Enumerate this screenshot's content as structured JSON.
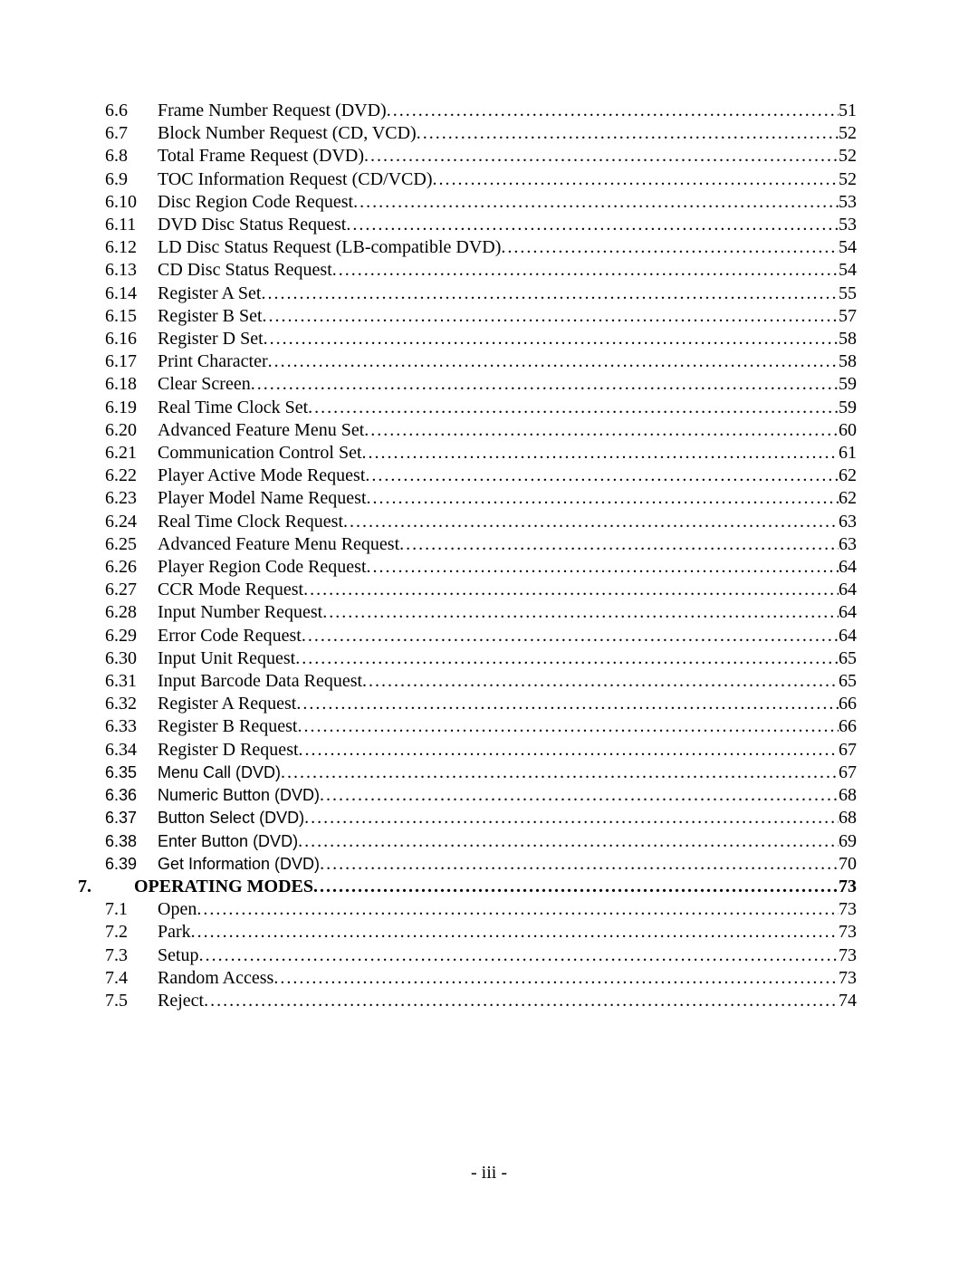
{
  "page_number_label": "- iii -",
  "toc": [
    {
      "chapter": "",
      "num": "6.6",
      "title": "Frame Number Request (DVD)",
      "page": "51",
      "header": false,
      "alt": false
    },
    {
      "chapter": "",
      "num": "6.7",
      "title": "Block Number Request (CD, VCD)",
      "page": "52",
      "header": false,
      "alt": false
    },
    {
      "chapter": "",
      "num": "6.8",
      "title": "Total Frame Request (DVD)",
      "page": "52",
      "header": false,
      "alt": false
    },
    {
      "chapter": "",
      "num": "6.9",
      "title": "TOC Information Request (CD/VCD)",
      "page": "52",
      "header": false,
      "alt": false
    },
    {
      "chapter": "",
      "num": "6.10",
      "title": "Disc Region Code Request",
      "page": "53",
      "header": false,
      "alt": false
    },
    {
      "chapter": "",
      "num": "6.11",
      "title": "DVD Disc Status Request",
      "page": "53",
      "header": false,
      "alt": false
    },
    {
      "chapter": "",
      "num": "6.12",
      "title": "LD Disc Status Request (LB-compatible DVD)",
      "page": "54",
      "header": false,
      "alt": false
    },
    {
      "chapter": "",
      "num": "6.13",
      "title": "CD Disc Status Request",
      "page": "54",
      "header": false,
      "alt": false
    },
    {
      "chapter": "",
      "num": "6.14",
      "title": "Register A Set",
      "page": "55",
      "header": false,
      "alt": false
    },
    {
      "chapter": "",
      "num": "6.15",
      "title": "Register B Set",
      "page": "57",
      "header": false,
      "alt": false
    },
    {
      "chapter": "",
      "num": "6.16",
      "title": "Register D Set",
      "page": "58",
      "header": false,
      "alt": false
    },
    {
      "chapter": "",
      "num": "6.17",
      "title": "Print Character",
      "page": "58",
      "header": false,
      "alt": false
    },
    {
      "chapter": "",
      "num": "6.18",
      "title": "Clear Screen",
      "page": "59",
      "header": false,
      "alt": false
    },
    {
      "chapter": "",
      "num": "6.19",
      "title": "Real Time Clock Set",
      "page": "59",
      "header": false,
      "alt": false
    },
    {
      "chapter": "",
      "num": "6.20",
      "title": "Advanced Feature Menu Set",
      "page": "60",
      "header": false,
      "alt": false
    },
    {
      "chapter": "",
      "num": "6.21",
      "title": "Communication Control Set",
      "page": "61",
      "header": false,
      "alt": false
    },
    {
      "chapter": "",
      "num": "6.22",
      "title": "Player Active Mode Request",
      "page": "62",
      "header": false,
      "alt": false
    },
    {
      "chapter": "",
      "num": "6.23",
      "title": "Player Model Name Request",
      "page": "62",
      "header": false,
      "alt": false
    },
    {
      "chapter": "",
      "num": "6.24",
      "title": "Real Time Clock Request",
      "page": "63",
      "header": false,
      "alt": false
    },
    {
      "chapter": "",
      "num": "6.25",
      "title": "Advanced Feature Menu Request",
      "page": "63",
      "header": false,
      "alt": false
    },
    {
      "chapter": "",
      "num": "6.26",
      "title": "Player Region Code Request",
      "page": "64",
      "header": false,
      "alt": false
    },
    {
      "chapter": "",
      "num": "6.27",
      "title": "CCR Mode Request",
      "page": "64",
      "header": false,
      "alt": false
    },
    {
      "chapter": "",
      "num": "6.28",
      "title": "Input Number Request",
      "page": "64",
      "header": false,
      "alt": false
    },
    {
      "chapter": "",
      "num": "6.29",
      "title": "Error Code Request",
      "page": "64",
      "header": false,
      "alt": false
    },
    {
      "chapter": "",
      "num": "6.30",
      "title": "Input Unit Request",
      "page": "65",
      "header": false,
      "alt": false
    },
    {
      "chapter": "",
      "num": "6.31",
      "title": "Input Barcode Data Request",
      "page": "65",
      "header": false,
      "alt": false
    },
    {
      "chapter": "",
      "num": "6.32",
      "title": "Register A Request",
      "page": "66",
      "header": false,
      "alt": false
    },
    {
      "chapter": "",
      "num": "6.33",
      "title": "Register B Request",
      "page": "66",
      "header": false,
      "alt": false
    },
    {
      "chapter": "",
      "num": "6.34",
      "title": "Register D Request",
      "page": "67",
      "header": false,
      "alt": false
    },
    {
      "chapter": "",
      "num": "6.35",
      "title": "Menu Call (DVD)",
      "page": "67",
      "header": false,
      "alt": true
    },
    {
      "chapter": "",
      "num": "6.36",
      "title": "Numeric Button (DVD)",
      "page": "68",
      "header": false,
      "alt": true
    },
    {
      "chapter": "",
      "num": "6.37",
      "title": "Button Select (DVD)",
      "page": "68",
      "header": false,
      "alt": true
    },
    {
      "chapter": "",
      "num": "6.38",
      "title": "Enter Button (DVD)",
      "page": "69",
      "header": false,
      "alt": true
    },
    {
      "chapter": "",
      "num": "6.39",
      "title": "Get Information (DVD)",
      "page": "70",
      "header": false,
      "alt": true
    },
    {
      "chapter": "7.",
      "num": "",
      "title": "OPERATING MODES",
      "page": "73",
      "header": true,
      "alt": false
    },
    {
      "chapter": "",
      "num": "7.1",
      "title": "Open",
      "page": "73",
      "header": false,
      "alt": false
    },
    {
      "chapter": "",
      "num": "7.2",
      "title": "Park",
      "page": "73",
      "header": false,
      "alt": false
    },
    {
      "chapter": "",
      "num": "7.3",
      "title": "Setup",
      "page": "73",
      "header": false,
      "alt": false
    },
    {
      "chapter": "",
      "num": "7.4",
      "title": "Random Access",
      "page": "73",
      "header": false,
      "alt": false
    },
    {
      "chapter": "",
      "num": "7.5",
      "title": "Reject",
      "page": "74",
      "header": false,
      "alt": false
    }
  ]
}
